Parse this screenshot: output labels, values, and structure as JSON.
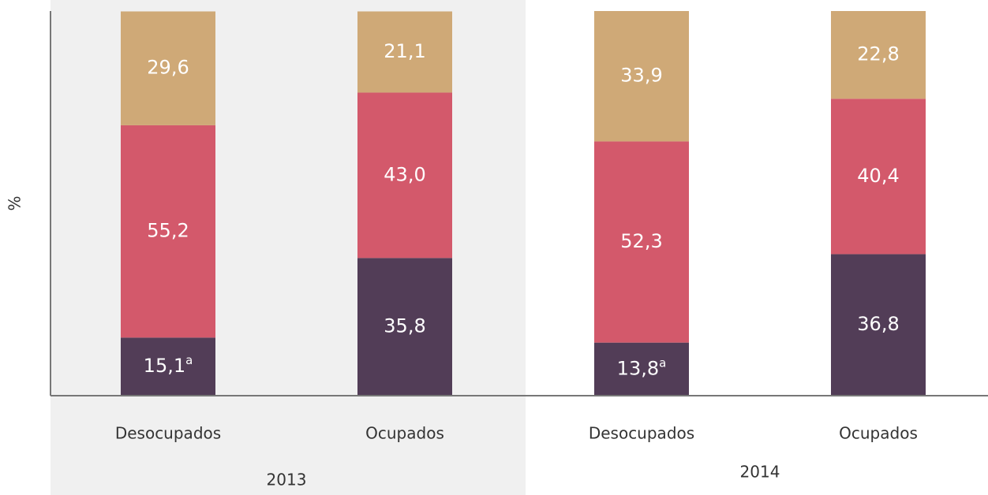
{
  "chart_data": {
    "type": "stacked_bar",
    "y_label": "%",
    "categories": [
      "Desocupados",
      "Ocupados",
      "Desocupados",
      "Ocupados"
    ],
    "groups": [
      "2013",
      "2014"
    ],
    "ylim": [
      0,
      100
    ],
    "series": [
      {
        "color": "#523d57",
        "values": [
          15.1,
          35.8,
          13.8,
          36.8
        ],
        "value_labels": [
          "15,1",
          "35,8",
          "13,8",
          "36,8"
        ],
        "value_notes": [
          "a",
          null,
          "a",
          null
        ]
      },
      {
        "color": "#d3596b",
        "values": [
          55.2,
          43.0,
          52.3,
          40.4
        ],
        "value_labels": [
          "55,2",
          "43,0",
          "52,3",
          "40,4"
        ]
      },
      {
        "color": "#cfa977",
        "values": [
          29.6,
          21.1,
          33.9,
          22.8
        ],
        "value_labels": [
          "29,6",
          "21,1",
          "33,9",
          "22,8"
        ]
      }
    ]
  }
}
